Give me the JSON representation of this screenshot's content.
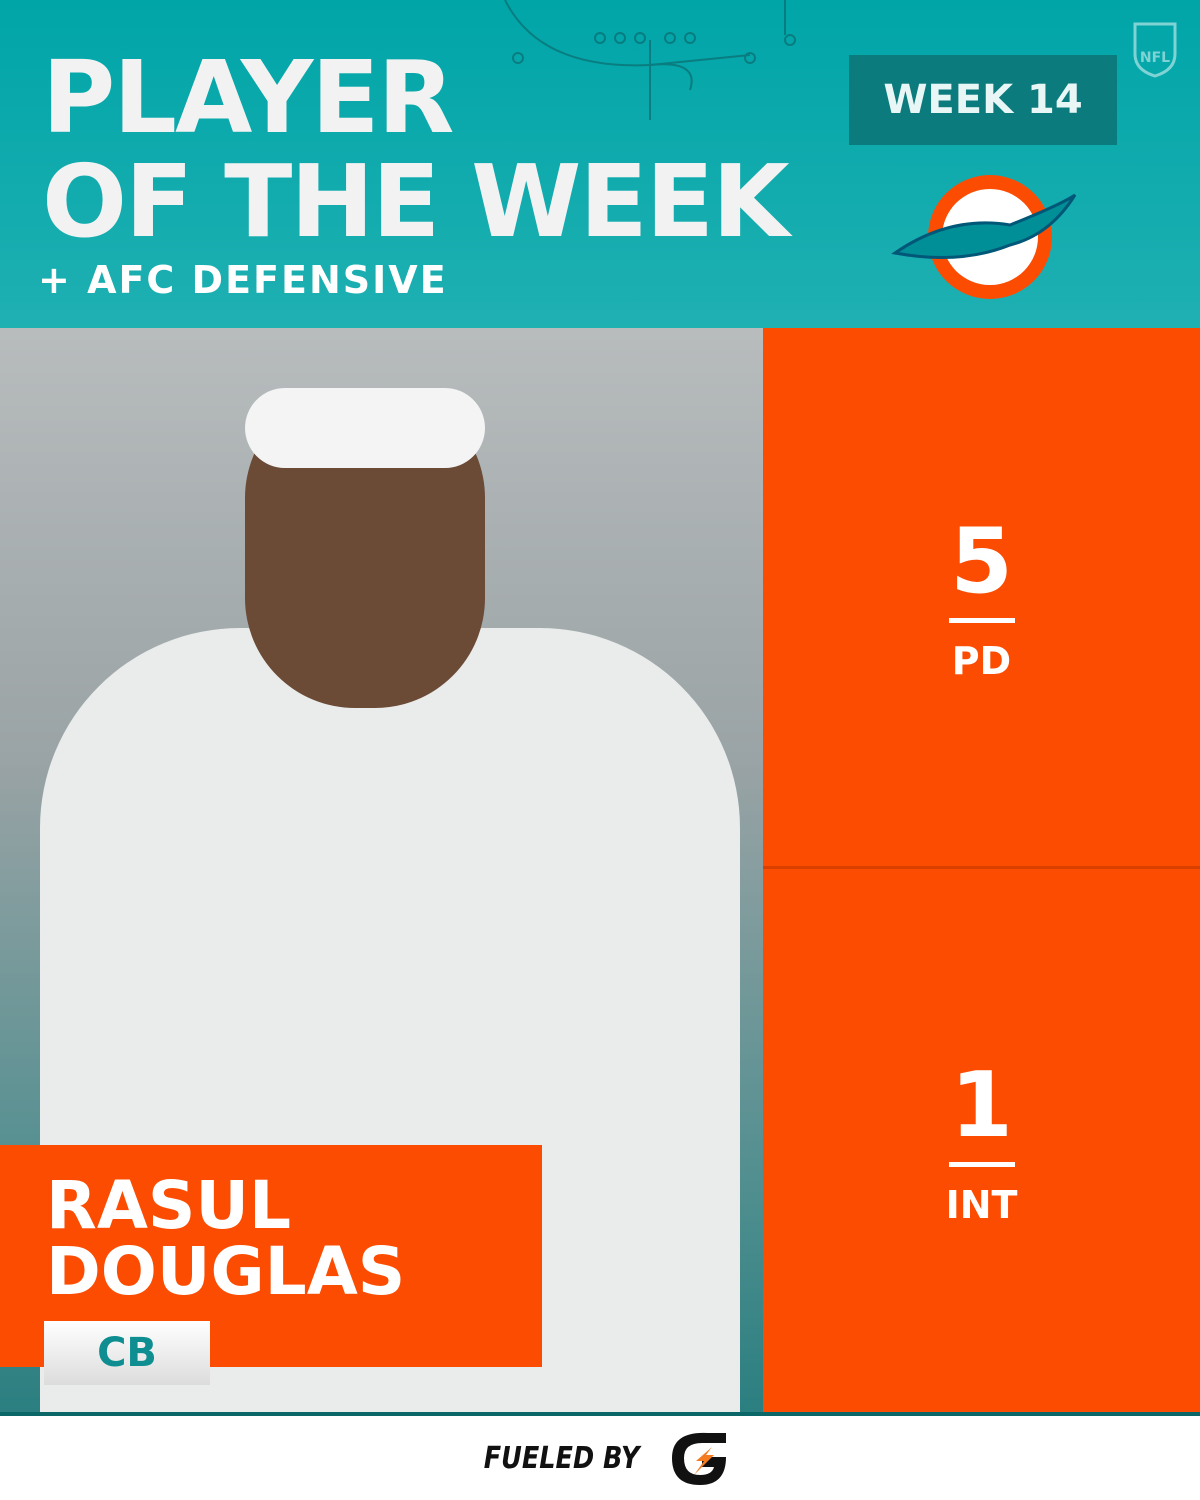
{
  "header": {
    "title_line1": "PLAYER",
    "title_line2": "OF THE WEEK",
    "subtitle": "+ AFC DEFENSIVE",
    "week": "WEEK 14",
    "team_logo": "miami-dolphins-logo",
    "league_logo": "nfl-shield-logo"
  },
  "player": {
    "first_name": "RASUL",
    "last_name": "DOUGLAS",
    "position": "CB"
  },
  "stats": [
    {
      "value": "5",
      "label": "PD"
    },
    {
      "value": "1",
      "label": "INT"
    }
  ],
  "footer": {
    "text": "FUELED BY",
    "sponsor_logo": "gatorade-g-logo"
  },
  "colors": {
    "teal": "#00a5a8",
    "orange": "#fc4c02",
    "dark_teal": "#0c7b7e"
  }
}
